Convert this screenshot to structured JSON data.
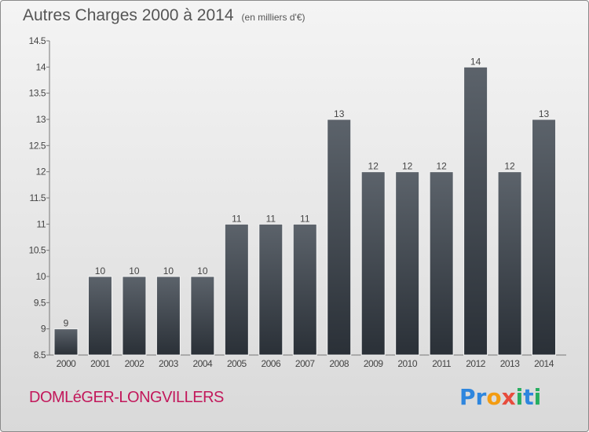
{
  "title": "Autres Charges 2000 à 2014",
  "title_unit": "(en milliers d'€)",
  "commune": "DOMLéGER-LONGVILLERS",
  "logo": {
    "text": "Proxiti",
    "letters": [
      {
        "ch": "P",
        "color": "#2e86de"
      },
      {
        "ch": "r",
        "color": "#2e86de"
      },
      {
        "ch": "o",
        "color": "#f39c12"
      },
      {
        "ch": "x",
        "color": "#e74c3c"
      },
      {
        "ch": "i",
        "color": "#27ae60"
      },
      {
        "ch": "t",
        "color": "#2e86de"
      },
      {
        "ch": "i",
        "color": "#27ae60"
      }
    ]
  },
  "chart_data": {
    "type": "bar",
    "title": "Autres Charges 2000 à 2014",
    "categories": [
      "2000",
      "2001",
      "2002",
      "2003",
      "2004",
      "2005",
      "2006",
      "2007",
      "2008",
      "2009",
      "2010",
      "2011",
      "2012",
      "2013",
      "2014"
    ],
    "values": [
      9,
      10,
      10,
      10,
      10,
      11,
      11,
      11,
      13,
      12,
      12,
      12,
      14,
      12,
      13
    ],
    "ylim": [
      8.5,
      14.5
    ],
    "yticks": [
      8.5,
      9,
      9.5,
      10,
      10.5,
      11,
      11.5,
      12,
      12.5,
      13,
      13.5,
      14,
      14.5
    ],
    "ytick_labels": [
      "8.5",
      "9",
      "9.5",
      "10",
      "10.5",
      "11",
      "11.5",
      "12",
      "12.5",
      "13",
      "13.5",
      "14",
      "14.5"
    ],
    "grid": false,
    "bar_color_top": "#5c636b",
    "bar_color_bottom": "#2a3037"
  }
}
